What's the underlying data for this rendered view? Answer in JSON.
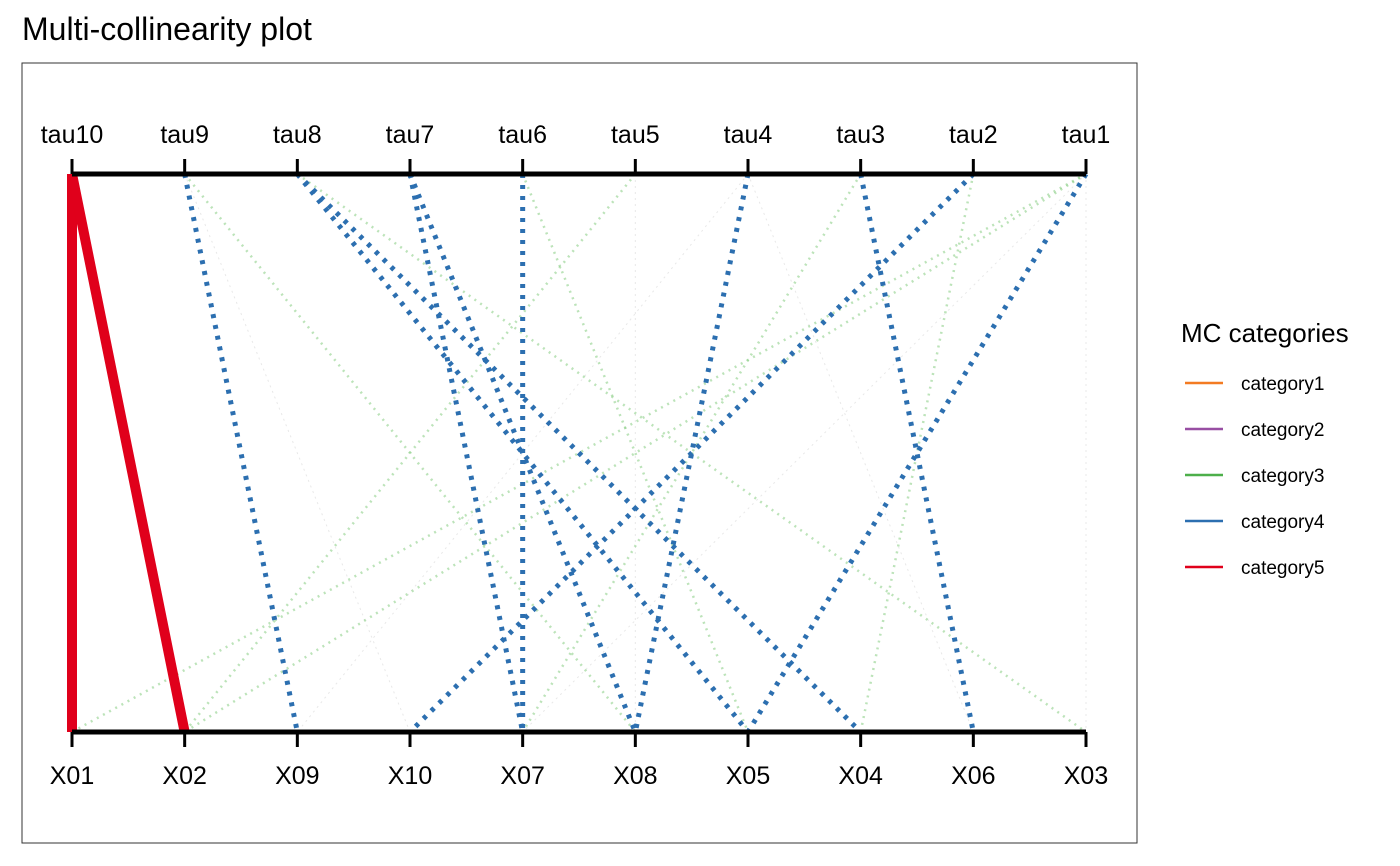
{
  "chart_data": {
    "type": "parallel-coordinates",
    "title": "Multi-collinearity plot",
    "top_axis_labels": [
      "tau10",
      "tau9",
      "tau8",
      "tau7",
      "tau6",
      "tau5",
      "tau4",
      "tau3",
      "tau2",
      "tau1"
    ],
    "bottom_axis_labels": [
      "X01",
      "X02",
      "X09",
      "X10",
      "X07",
      "X08",
      "X05",
      "X04",
      "X06",
      "X03"
    ],
    "legend": {
      "title": "MC categories",
      "placement": "right",
      "items": [
        {
          "label": "category1",
          "color": "#f37b22"
        },
        {
          "label": "category2",
          "color": "#984ea3"
        },
        {
          "label": "category3",
          "color": "#4daf4a"
        },
        {
          "label": "category4",
          "color": "#2c6fb0"
        },
        {
          "label": "category5",
          "color": "#e0001b"
        }
      ]
    },
    "links": [
      {
        "tau": "tau10",
        "x": "X01",
        "category": "category5"
      },
      {
        "tau": "tau10",
        "x": "X02",
        "category": "category5"
      },
      {
        "tau": "tau9",
        "x": "X09",
        "category": "category4"
      },
      {
        "tau": "tau9",
        "x": "X08",
        "category": "category3"
      },
      {
        "tau": "tau9",
        "x": "X10",
        "category": "category1"
      },
      {
        "tau": "tau8",
        "x": "X05",
        "category": "category4"
      },
      {
        "tau": "tau8",
        "x": "X04",
        "category": "category4"
      },
      {
        "tau": "tau8",
        "x": "X03",
        "category": "category3"
      },
      {
        "tau": "tau7",
        "x": "X07",
        "category": "category4"
      },
      {
        "tau": "tau7",
        "x": "X08",
        "category": "category4"
      },
      {
        "tau": "tau6",
        "x": "X07",
        "category": "category4"
      },
      {
        "tau": "tau6",
        "x": "X05",
        "category": "category3"
      },
      {
        "tau": "tau5",
        "x": "X02",
        "category": "category3"
      },
      {
        "tau": "tau5",
        "x": "X08",
        "category": "category1"
      },
      {
        "tau": "tau4",
        "x": "X08",
        "category": "category4"
      },
      {
        "tau": "tau4",
        "x": "X09",
        "category": "category1"
      },
      {
        "tau": "tau4",
        "x": "X06",
        "category": "category1"
      },
      {
        "tau": "tau3",
        "x": "X06",
        "category": "category4"
      },
      {
        "tau": "tau3",
        "x": "X07",
        "category": "category3"
      },
      {
        "tau": "tau2",
        "x": "X10",
        "category": "category4"
      },
      {
        "tau": "tau2",
        "x": "X04",
        "category": "category3"
      },
      {
        "tau": "tau1",
        "x": "X05",
        "category": "category4"
      },
      {
        "tau": "tau1",
        "x": "X01",
        "category": "category3"
      },
      {
        "tau": "tau1",
        "x": "X02",
        "category": "category3"
      },
      {
        "tau": "tau1",
        "x": "X03",
        "category": "category1"
      },
      {
        "tau": "tau1",
        "x": "X07",
        "category": "category1"
      }
    ]
  }
}
